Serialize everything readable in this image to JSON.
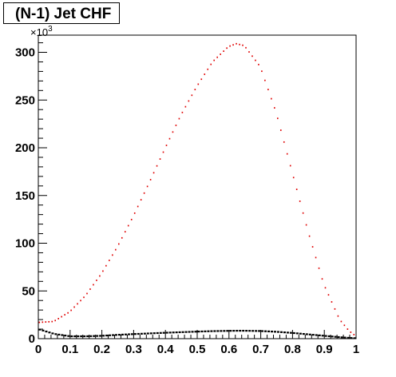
{
  "chart_data": {
    "type": "line",
    "title": "(N-1) Jet CHF",
    "xlabel": "",
    "ylabel": "",
    "xlim": [
      0,
      1
    ],
    "ylim": [
      0,
      318
    ],
    "y_exponent_label": "×10",
    "y_exponent_power": "3",
    "x_ticks": [
      "0",
      "0.1",
      "0.2",
      "0.3",
      "0.4",
      "0.5",
      "0.6",
      "0.7",
      "0.8",
      "0.9",
      "1"
    ],
    "y_ticks": [
      "0",
      "50",
      "100",
      "150",
      "200",
      "250",
      "300"
    ],
    "grid": false,
    "x": [
      0,
      0.05,
      0.1,
      0.15,
      0.2,
      0.25,
      0.3,
      0.35,
      0.4,
      0.45,
      0.5,
      0.55,
      0.6,
      0.625,
      0.65,
      0.7,
      0.75,
      0.8,
      0.85,
      0.9,
      0.95,
      0.98,
      1.0
    ],
    "series": [
      {
        "color": "#e00000",
        "values": [
          17,
          18,
          28,
          45,
          68,
          96,
          128,
          163,
          199,
          234,
          264,
          290,
          306,
          309,
          307,
          285,
          237,
          175,
          113,
          57,
          20,
          8,
          3
        ]
      },
      {
        "color": "#000000",
        "values": [
          10,
          5,
          2.5,
          2.5,
          3,
          4,
          4.8,
          5.5,
          6.2,
          6.8,
          7.4,
          7.9,
          8.2,
          8.3,
          8.3,
          8.0,
          7.2,
          6.0,
          4.5,
          3.0,
          1.5,
          0.8,
          0.4
        ]
      }
    ]
  }
}
